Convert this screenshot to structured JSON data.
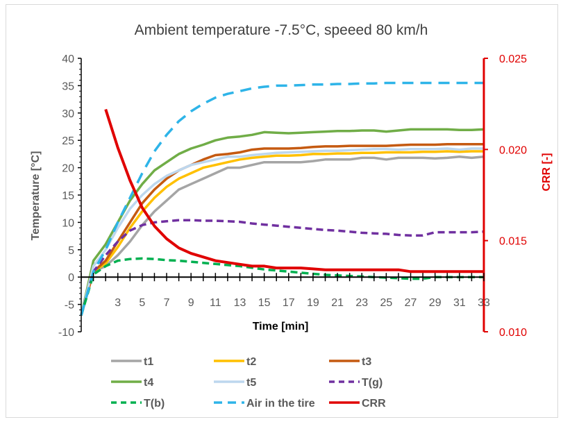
{
  "chart_data": {
    "type": "line",
    "title": "Ambient temperature -7.5⁰C, speeed 80 km/h",
    "title_display": "Ambient temperature -7.5°C, speeed 80 km/h",
    "xlabel": "Time [min]",
    "ylabel": "Temperature [°C]",
    "y2label": "CRR [-]",
    "xlim": [
      0,
      33
    ],
    "ylim": [
      -10,
      40
    ],
    "y2lim": [
      0.01,
      0.025
    ],
    "x_ticks": [
      "3",
      "5",
      "7",
      "9",
      "11",
      "13",
      "15",
      "17",
      "19",
      "21",
      "23",
      "25",
      "27",
      "29",
      "31",
      "33"
    ],
    "y_ticks": [
      "40",
      "35",
      "30",
      "25",
      "20",
      "15",
      "10",
      "5",
      "0",
      "-5",
      "-10"
    ],
    "y2_ticks": [
      "0.025",
      "0.020",
      "0.015",
      "0.010"
    ],
    "grid": false,
    "legend_position": "bottom",
    "colors": {
      "t1": "#a5a5a5",
      "t2": "#ffc000",
      "t3": "#c55a11",
      "t4": "#70ad47",
      "t5": "#bdd7ee",
      "Tg": "#7030a0",
      "Tb": "#00b050",
      "air": "#2eb4e8",
      "crr": "#e00000",
      "axis_right": "#e00000"
    },
    "series": [
      {
        "name": "t1",
        "key": "t1",
        "axis": "left",
        "dash": false,
        "x": [
          0,
          1,
          2,
          3,
          4,
          5,
          6,
          7,
          8,
          9,
          10,
          11,
          12,
          13,
          14,
          15,
          16,
          17,
          18,
          19,
          20,
          21,
          22,
          23,
          24,
          25,
          26,
          27,
          28,
          29,
          30,
          31,
          32,
          33
        ],
        "y": [
          -7,
          1,
          2,
          4,
          6.5,
          9.5,
          12,
          14,
          16,
          17,
          18,
          19,
          20,
          20,
          20.5,
          21,
          21,
          21,
          21,
          21.2,
          21.5,
          21.5,
          21.5,
          21.8,
          21.8,
          21.5,
          21.8,
          21.8,
          21.8,
          21.7,
          21.8,
          22,
          21.8,
          22
        ]
      },
      {
        "name": "t2",
        "key": "t2",
        "axis": "left",
        "dash": false,
        "x": [
          0,
          1,
          2,
          3,
          4,
          5,
          6,
          7,
          8,
          9,
          10,
          11,
          12,
          13,
          14,
          15,
          16,
          17,
          18,
          19,
          20,
          21,
          22,
          23,
          24,
          25,
          26,
          27,
          28,
          29,
          30,
          31,
          32,
          33
        ],
        "y": [
          -7,
          1,
          2.5,
          5.5,
          9,
          12,
          14.5,
          16.5,
          18,
          19,
          20,
          20.5,
          21,
          21.5,
          21.8,
          22,
          22.2,
          22.2,
          22.3,
          22.5,
          22.5,
          22.6,
          22.6,
          22.7,
          22.7,
          22.8,
          22.8,
          22.8,
          22.9,
          22.9,
          23,
          22.9,
          23,
          23
        ]
      },
      {
        "name": "t3",
        "key": "t3",
        "axis": "left",
        "dash": false,
        "x": [
          0,
          1,
          2,
          3,
          4,
          5,
          6,
          7,
          8,
          9,
          10,
          11,
          12,
          13,
          14,
          15,
          16,
          17,
          18,
          19,
          20,
          21,
          22,
          23,
          24,
          25,
          26,
          27,
          28,
          29,
          30,
          31,
          32,
          33
        ],
        "y": [
          -7,
          1,
          3,
          6.5,
          10,
          13.5,
          16,
          18,
          19.5,
          20.5,
          21.5,
          22.3,
          22.5,
          22.8,
          23.3,
          23.5,
          23.5,
          23.5,
          23.6,
          23.8,
          23.9,
          23.9,
          24,
          24,
          24,
          24,
          24.1,
          24.2,
          24.2,
          24.2,
          24.3,
          24.3,
          24.3,
          24.3
        ]
      },
      {
        "name": "t4",
        "key": "t4",
        "axis": "left",
        "dash": false,
        "x": [
          0,
          1,
          2,
          3,
          4,
          5,
          6,
          7,
          8,
          9,
          10,
          11,
          12,
          13,
          14,
          15,
          16,
          17,
          18,
          19,
          20,
          21,
          22,
          23,
          24,
          25,
          26,
          27,
          28,
          29,
          30,
          31,
          32,
          33
        ],
        "y": [
          -7,
          3,
          6,
          10,
          14,
          17,
          19.5,
          21,
          22.5,
          23.5,
          24.2,
          25,
          25.5,
          25.7,
          26,
          26.5,
          26.4,
          26.3,
          26.4,
          26.5,
          26.6,
          26.7,
          26.7,
          26.8,
          26.8,
          26.6,
          26.8,
          27,
          27,
          27,
          27,
          26.9,
          26.9,
          27
        ]
      },
      {
        "name": "t5",
        "key": "t5",
        "axis": "left",
        "dash": false,
        "x": [
          0,
          1,
          2,
          3,
          4,
          5,
          6,
          7,
          8,
          9,
          10,
          11,
          12,
          13,
          14,
          15,
          16,
          17,
          18,
          19,
          20,
          21,
          22,
          23,
          24,
          25,
          26,
          27,
          28,
          29,
          30,
          31,
          32,
          33
        ],
        "y": [
          -7,
          2,
          5,
          9,
          12.5,
          15,
          17,
          18.5,
          19.5,
          20.5,
          21,
          21.5,
          22,
          22,
          22.3,
          22.5,
          22.7,
          22.8,
          22.9,
          23,
          23.1,
          23.1,
          23.2,
          23.3,
          23.4,
          23.4,
          23.3,
          23.4,
          23.4,
          23.4,
          23.5,
          23.3,
          23.5,
          23.5
        ]
      },
      {
        "name": "T(g)",
        "key": "Tg",
        "axis": "left",
        "dash": true,
        "x": [
          0,
          1,
          2,
          3,
          4,
          5,
          6,
          7,
          8,
          9,
          10,
          11,
          12,
          13,
          14,
          15,
          16,
          17,
          18,
          19,
          20,
          21,
          22,
          23,
          24,
          25,
          26,
          27,
          28,
          29,
          30,
          31,
          32,
          33
        ],
        "y": [
          -7,
          1,
          4,
          6.5,
          8.5,
          9.5,
          10,
          10.2,
          10.4,
          10.4,
          10.3,
          10.3,
          10.2,
          10.1,
          9.8,
          9.6,
          9.4,
          9.2,
          9,
          8.8,
          8.6,
          8.5,
          8.3,
          8.1,
          8,
          7.9,
          7.7,
          7.6,
          7.6,
          8.2,
          8.2,
          8.2,
          8.2,
          8.3
        ]
      },
      {
        "name": "T(b)",
        "key": "Tb",
        "axis": "left",
        "dash": true,
        "x": [
          0,
          1,
          2,
          3,
          4,
          5,
          6,
          7,
          8,
          9,
          10,
          11,
          12,
          13,
          14,
          15,
          16,
          17,
          18,
          19,
          20,
          21,
          22,
          23,
          24,
          25,
          26,
          27,
          28,
          29,
          30,
          31,
          32,
          33
        ],
        "y": [
          -7,
          0.5,
          2,
          3,
          3.3,
          3.4,
          3.3,
          3.1,
          3,
          2.8,
          2.6,
          2.4,
          2.2,
          2,
          1.7,
          1.4,
          1.2,
          1,
          0.8,
          0.6,
          0.4,
          0.3,
          0.2,
          0.1,
          0,
          -0.1,
          -0.2,
          -0.3,
          -0.3,
          0,
          0,
          0,
          0,
          0
        ]
      },
      {
        "name": "Air  in the tire",
        "key": "air",
        "axis": "left",
        "dash": true,
        "x": [
          0,
          1,
          2,
          3,
          4,
          5,
          6,
          7,
          8,
          9,
          10,
          11,
          12,
          13,
          14,
          15,
          16,
          17,
          18,
          19,
          20,
          21,
          22,
          23,
          24,
          25,
          26,
          27,
          28,
          29,
          30,
          31,
          32,
          33
        ],
        "y": [
          -7,
          1,
          5,
          10,
          14.5,
          19,
          23,
          26,
          28.5,
          30.3,
          31.7,
          32.8,
          33.5,
          34,
          34.5,
          34.8,
          35,
          35,
          35.1,
          35.2,
          35.2,
          35.3,
          35.3,
          35.4,
          35.4,
          35.5,
          35.5,
          35.5,
          35.5,
          35.5,
          35.5,
          35.5,
          35.5,
          35.5
        ]
      },
      {
        "name": "CRR",
        "key": "crr",
        "axis": "right",
        "dash": false,
        "x": [
          2,
          3,
          4,
          5,
          6,
          7,
          8,
          9,
          10,
          11,
          12,
          13,
          14,
          15,
          16,
          17,
          18,
          19,
          20,
          21,
          22,
          23,
          24,
          25,
          26,
          27,
          28,
          29,
          30,
          31,
          32,
          33
        ],
        "y": [
          0.0222,
          0.0201,
          0.0183,
          0.0168,
          0.0158,
          0.0151,
          0.0146,
          0.0143,
          0.0141,
          0.0139,
          0.0138,
          0.0137,
          0.0136,
          0.0136,
          0.0135,
          0.0135,
          0.0135,
          0.01345,
          0.0134,
          0.0134,
          0.0134,
          0.0134,
          0.0134,
          0.0134,
          0.0134,
          0.0133,
          0.0133,
          0.0133,
          0.0133,
          0.0133,
          0.0133,
          0.0133
        ]
      }
    ]
  }
}
